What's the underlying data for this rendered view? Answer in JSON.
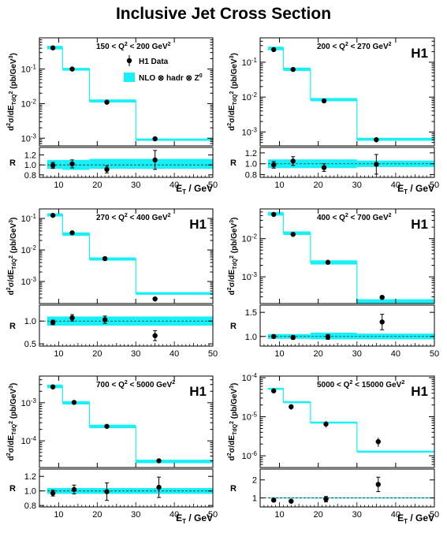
{
  "title": "Inclusive Jet Cross Section",
  "chart_data": [
    {
      "type": "line",
      "panel_label": "150 < Q^2 < 200 GeV^2",
      "experiment_label": "",
      "legend": {
        "data": "H1 Data",
        "model": "NLO ⊗ hadr ⊗ Z^0"
      },
      "ylabel": "d^2σ/dE_TdQ^2 (pb/GeV^3)",
      "ratio_ylabel": "R",
      "xlabel": "E_T / GeV",
      "xlim": [
        5,
        50
      ],
      "xticks": [
        10,
        20,
        30,
        40,
        50
      ],
      "ylim": [
        0.0006,
        0.8
      ],
      "ylog": true,
      "yticks": [
        {
          "v": 0.001,
          "t": "10^-3"
        },
        {
          "v": 0.01,
          "t": "10^-2"
        },
        {
          "v": 0.1,
          "t": "10^-1"
        }
      ],
      "bins": [
        [
          7,
          11
        ],
        [
          11,
          18
        ],
        [
          18,
          30
        ],
        [
          30,
          50
        ]
      ],
      "nlo_values": [
        0.42,
        0.1,
        0.012,
        0.00092
      ],
      "nlo_band": [
        [
          0.37,
          0.47
        ],
        [
          0.09,
          0.108
        ],
        [
          0.0108,
          0.0132
        ],
        [
          0.00084,
          0.00098
        ]
      ],
      "data_x": [
        8.5,
        13.5,
        22.5,
        35
      ],
      "data_y": [
        0.41,
        0.1,
        0.011,
        0.00096
      ],
      "data_err": [
        0.03,
        0.008,
        0.001,
        0.0001
      ],
      "ratio_ylim": [
        0.75,
        1.35
      ],
      "ratio_yticks": [
        {
          "v": 0.8,
          "t": "0.8"
        },
        {
          "v": 1.0,
          "t": "1.0"
        },
        {
          "v": 1.2,
          "t": "1.2"
        }
      ],
      "ratio_band": [
        [
          0.92,
          1.1
        ],
        [
          0.9,
          1.1
        ],
        [
          0.92,
          1.12
        ],
        [
          0.92,
          1.12
        ]
      ],
      "ratio_y": [
        0.99,
        1.02,
        0.91,
        1.1
      ],
      "ratio_err": [
        0.06,
        0.08,
        0.07,
        0.19
      ]
    },
    {
      "type": "line",
      "panel_label": "200 < Q^2 < 270 GeV^2",
      "experiment_label": "H1",
      "ylabel": "d^2σ/dE_TdQ^2 (pb/GeV^3)",
      "ratio_ylabel": "R",
      "xlabel": "E_T / GeV",
      "xlim": [
        5,
        50
      ],
      "xticks": [
        10,
        20,
        30,
        40,
        50
      ],
      "ylim": [
        0.0004,
        0.5
      ],
      "ylog": true,
      "yticks": [
        {
          "v": 0.001,
          "t": "10^-3"
        },
        {
          "v": 0.01,
          "t": "10^-2"
        },
        {
          "v": 0.1,
          "t": "10^-1"
        }
      ],
      "bins": [
        [
          7,
          11
        ],
        [
          11,
          18
        ],
        [
          18,
          30
        ],
        [
          30,
          50
        ]
      ],
      "nlo_values": [
        0.25,
        0.063,
        0.0085,
        0.00062
      ],
      "nlo_band": [
        [
          0.22,
          0.28
        ],
        [
          0.056,
          0.07
        ],
        [
          0.0076,
          0.0094
        ],
        [
          0.00056,
          0.00068
        ]
      ],
      "data_x": [
        8.5,
        13.5,
        21.5,
        35
      ],
      "data_y": [
        0.23,
        0.062,
        0.0078,
        0.0006
      ],
      "data_err": [
        0.02,
        0.005,
        0.0007,
        0.0001
      ],
      "ratio_ylim": [
        0.75,
        1.3
      ],
      "ratio_yticks": [
        {
          "v": 0.8,
          "t": "0.8"
        },
        {
          "v": 1.0,
          "t": "1.0"
        },
        {
          "v": 1.2,
          "t": "1.2"
        }
      ],
      "ratio_band": [
        [
          0.92,
          1.08
        ],
        [
          0.92,
          1.08
        ],
        [
          0.92,
          1.08
        ],
        [
          0.94,
          1.06
        ]
      ],
      "ratio_y": [
        0.98,
        1.05,
        0.93,
        0.99
      ],
      "ratio_err": [
        0.06,
        0.08,
        0.07,
        0.18
      ]
    },
    {
      "type": "line",
      "panel_label": "270 < Q^2 < 400 GeV^2",
      "experiment_label": "H1",
      "ylabel": "d^2σ/dE_TdQ^2 (pb/GeV^3)",
      "ratio_ylabel": "R",
      "xlabel": "",
      "xlim": [
        5,
        50
      ],
      "xticks": [
        10,
        20,
        30,
        40,
        50
      ],
      "ylim": [
        0.0002,
        0.2
      ],
      "ylog": true,
      "yticks": [
        {
          "v": 0.001,
          "t": "10^-3"
        },
        {
          "v": 0.01,
          "t": "10^-2"
        },
        {
          "v": 0.1,
          "t": "10^-1"
        }
      ],
      "bins": [
        [
          7,
          11
        ],
        [
          11,
          18
        ],
        [
          18,
          30
        ],
        [
          30,
          50
        ]
      ],
      "nlo_values": [
        0.13,
        0.032,
        0.0052,
        0.00042
      ],
      "nlo_band": [
        [
          0.115,
          0.145
        ],
        [
          0.028,
          0.036
        ],
        [
          0.0046,
          0.0058
        ],
        [
          0.00038,
          0.00046
        ]
      ],
      "data_x": [
        8.5,
        13.5,
        22,
        35
      ],
      "data_y": [
        0.125,
        0.035,
        0.0053,
        0.00028
      ],
      "data_err": [
        0.01,
        0.003,
        0.0005,
        5e-05
      ],
      "ratio_ylim": [
        0.45,
        1.35
      ],
      "ratio_yticks": [
        {
          "v": 0.5,
          "t": "0.5"
        },
        {
          "v": 1.0,
          "t": "1.0"
        }
      ],
      "ratio_band": [
        [
          0.9,
          1.1
        ],
        [
          0.9,
          1.1
        ],
        [
          0.9,
          1.1
        ],
        [
          0.9,
          1.1
        ]
      ],
      "ratio_y": [
        0.97,
        1.07,
        1.03,
        0.68
      ],
      "ratio_err": [
        0.05,
        0.07,
        0.08,
        0.11
      ]
    },
    {
      "type": "line",
      "panel_label": "400 < Q^2 < 700 GeV^2",
      "experiment_label": "H1",
      "ylabel": "d^2σ/dE_TdQ^2 (pb/GeV^3)",
      "ratio_ylabel": "R",
      "xlabel": "",
      "xlim": [
        5,
        50
      ],
      "xticks": [
        10,
        20,
        30,
        40,
        50
      ],
      "ylim": [
        0.0002,
        0.06
      ],
      "ylog": true,
      "yticks": [
        {
          "v": 0.001,
          "t": "10^-3"
        },
        {
          "v": 0.01,
          "t": "10^-2"
        }
      ],
      "bins": [
        [
          7,
          11
        ],
        [
          11,
          18
        ],
        [
          18,
          30
        ],
        [
          30,
          50
        ]
      ],
      "nlo_values": [
        0.045,
        0.014,
        0.0024,
        0.00023
      ],
      "nlo_band": [
        [
          0.04,
          0.05
        ],
        [
          0.0125,
          0.0155
        ],
        [
          0.0021,
          0.0027
        ],
        [
          0.0002,
          0.00026
        ]
      ],
      "data_x": [
        8.5,
        13.5,
        22.5,
        36.5
      ],
      "data_y": [
        0.043,
        0.013,
        0.0024,
        0.00029
      ],
      "data_err": [
        0.003,
        0.001,
        0.0002,
        4e-05
      ],
      "ratio_ylim": [
        0.8,
        1.65
      ],
      "ratio_yticks": [
        {
          "v": 1.0,
          "t": "1.0"
        },
        {
          "v": 1.5,
          "t": "1.5"
        }
      ],
      "ratio_band": [
        [
          0.95,
          1.05
        ],
        [
          0.95,
          1.05
        ],
        [
          0.94,
          1.08
        ],
        [
          0.94,
          1.06
        ]
      ],
      "ratio_y": [
        1.0,
        0.98,
        0.99,
        1.3
      ],
      "ratio_err": [
        0.03,
        0.04,
        0.05,
        0.16
      ]
    },
    {
      "type": "line",
      "panel_label": "700 < Q^2 < 5000 GeV^2",
      "experiment_label": "H1",
      "ylabel": "d^2σ/dE_TdQ^2 (pb/GeV^3)",
      "ratio_ylabel": "R",
      "xlabel": "E_T / GeV",
      "xlim": [
        5,
        50
      ],
      "xticks": [
        10,
        20,
        30,
        40,
        50
      ],
      "ylim": [
        2e-05,
        0.005
      ],
      "ylog": true,
      "yticks": [
        {
          "v": 0.0001,
          "t": "10^-4"
        },
        {
          "v": 0.001,
          "t": "10^-3"
        }
      ],
      "bins": [
        [
          7,
          11
        ],
        [
          11,
          18
        ],
        [
          18,
          30
        ],
        [
          30,
          50
        ]
      ],
      "nlo_values": [
        0.0027,
        0.001,
        0.00024,
        2.9e-05
      ],
      "nlo_band": [
        [
          0.0024,
          0.003
        ],
        [
          0.0009,
          0.0011
        ],
        [
          0.000215,
          0.000265
        ],
        [
          2.6e-05,
          3.2e-05
        ]
      ],
      "data_x": [
        8.5,
        14,
        22.5,
        36
      ],
      "data_y": [
        0.0026,
        0.00102,
        0.00024,
        3e-05
      ],
      "data_err": [
        0.0002,
        8e-05,
        2e-05,
        4e-06
      ],
      "ratio_ylim": [
        0.78,
        1.3
      ],
      "ratio_yticks": [
        {
          "v": 0.8,
          "t": "0.8"
        },
        {
          "v": 1.0,
          "t": "1.0"
        },
        {
          "v": 1.2,
          "t": "1.2"
        }
      ],
      "ratio_band": [
        [
          0.96,
          1.04
        ],
        [
          0.96,
          1.04
        ],
        [
          0.96,
          1.04
        ],
        [
          0.96,
          1.04
        ]
      ],
      "ratio_y": [
        0.97,
        1.02,
        0.99,
        1.05
      ],
      "ratio_err": [
        0.04,
        0.06,
        0.12,
        0.14
      ]
    },
    {
      "type": "line",
      "panel_label": "5000 < Q^2 < 15000 GeV^2",
      "experiment_label": "H1",
      "ylabel": "d^2σ/dE_TdQ^2 (pb/GeV^3)",
      "ratio_ylabel": "R",
      "xlabel": "E_T / GeV",
      "xlim": [
        5,
        50
      ],
      "xticks": [
        10,
        20,
        30,
        40,
        50
      ],
      "ylim": [
        5e-07,
        0.00011
      ],
      "ylog": true,
      "yticks": [
        {
          "v": 1e-06,
          "t": "10^-6"
        },
        {
          "v": 1e-05,
          "t": "10^-5"
        },
        {
          "v": 0.0001,
          "t": "10^-4"
        }
      ],
      "bins": [
        [
          7,
          11
        ],
        [
          11,
          18
        ],
        [
          18,
          30
        ],
        [
          30,
          50
        ]
      ],
      "nlo_values": [
        5.2e-05,
        2.4e-05,
        7.2e-06,
        1.3e-06
      ],
      "nlo_band": [
        [
          4.9e-05,
          5.5e-05
        ],
        [
          2.3e-05,
          2.5e-05
        ],
        [
          6.9e-06,
          7.5e-06
        ],
        [
          1.25e-06,
          1.35e-06
        ]
      ],
      "data_x": [
        8.5,
        13,
        22,
        35.5
      ],
      "data_y": [
        4.6e-05,
        1.8e-05,
        6.5e-06,
        2.3e-06
      ],
      "data_err": [
        5e-06,
        3e-06,
        1.2e-06,
        6e-07
      ],
      "ratio_ylim": [
        0.5,
        2.6
      ],
      "ratio_yticks": [
        {
          "v": 1.0,
          "t": "1"
        },
        {
          "v": 2.0,
          "t": "2"
        }
      ],
      "ratio_band": [
        [
          0.97,
          1.03
        ],
        [
          0.97,
          1.03
        ],
        [
          0.97,
          1.03
        ],
        [
          0.97,
          1.03
        ]
      ],
      "ratio_y": [
        0.88,
        0.82,
        0.93,
        1.75
      ],
      "ratio_err": [
        0.08,
        0.06,
        0.15,
        0.4
      ]
    }
  ]
}
